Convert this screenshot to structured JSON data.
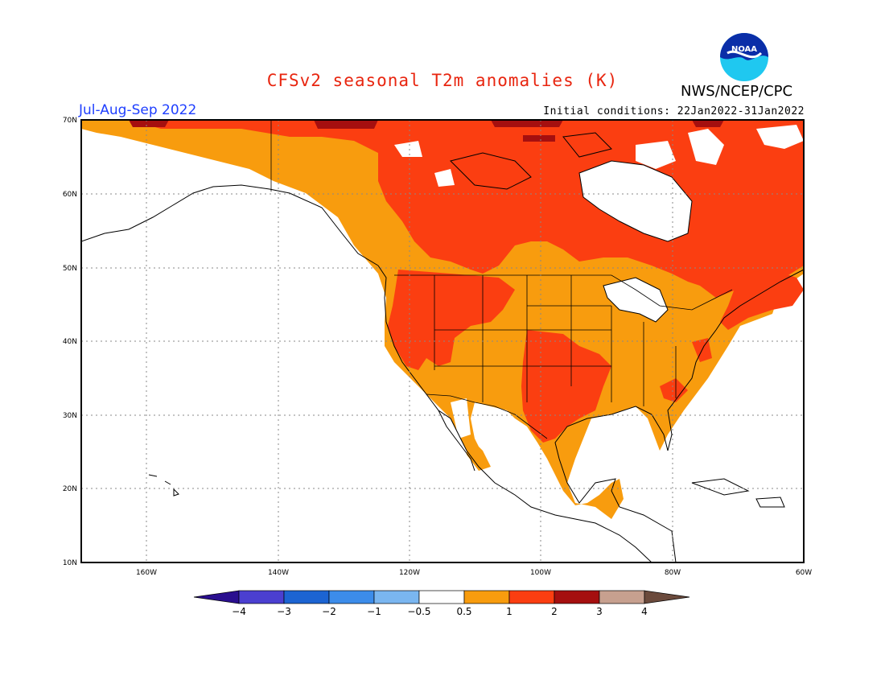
{
  "header": {
    "title": "CFSv2 seasonal T2m anomalies (K)",
    "period": "Jul-Aug-Sep 2022",
    "initial_conditions": "Initial conditions: 22Jan2022-31Jan2022",
    "agency": "NWS/NCEP/CPC",
    "logo_text": "NOAA"
  },
  "map": {
    "lat_labels": [
      "70N",
      "60N",
      "50N",
      "40N",
      "30N",
      "20N",
      "10N"
    ],
    "lon_labels": [
      "160W",
      "140W",
      "120W",
      "100W",
      "80W",
      "60W"
    ],
    "lon_range": [
      -170,
      -60
    ],
    "lat_range": [
      10,
      70
    ],
    "anomaly_colors": {
      "0.5-1": "#f89c0e",
      "1-2": "#fb3e11",
      "2-3": "#a50f0f"
    }
  },
  "colorbar": {
    "labels": [
      "-4",
      "-3",
      "-2",
      "-1",
      "-0.5",
      "0.5",
      "1",
      "2",
      "3",
      "4"
    ],
    "colors": [
      "#2a0f8f",
      "#4b3fd0",
      "#1c64d2",
      "#3c8cea",
      "#7ab6f0",
      "#ffffff",
      "#f89c0e",
      "#fb3e11",
      "#a50f0f",
      "#c7a08f",
      "#6b4a3c"
    ]
  }
}
